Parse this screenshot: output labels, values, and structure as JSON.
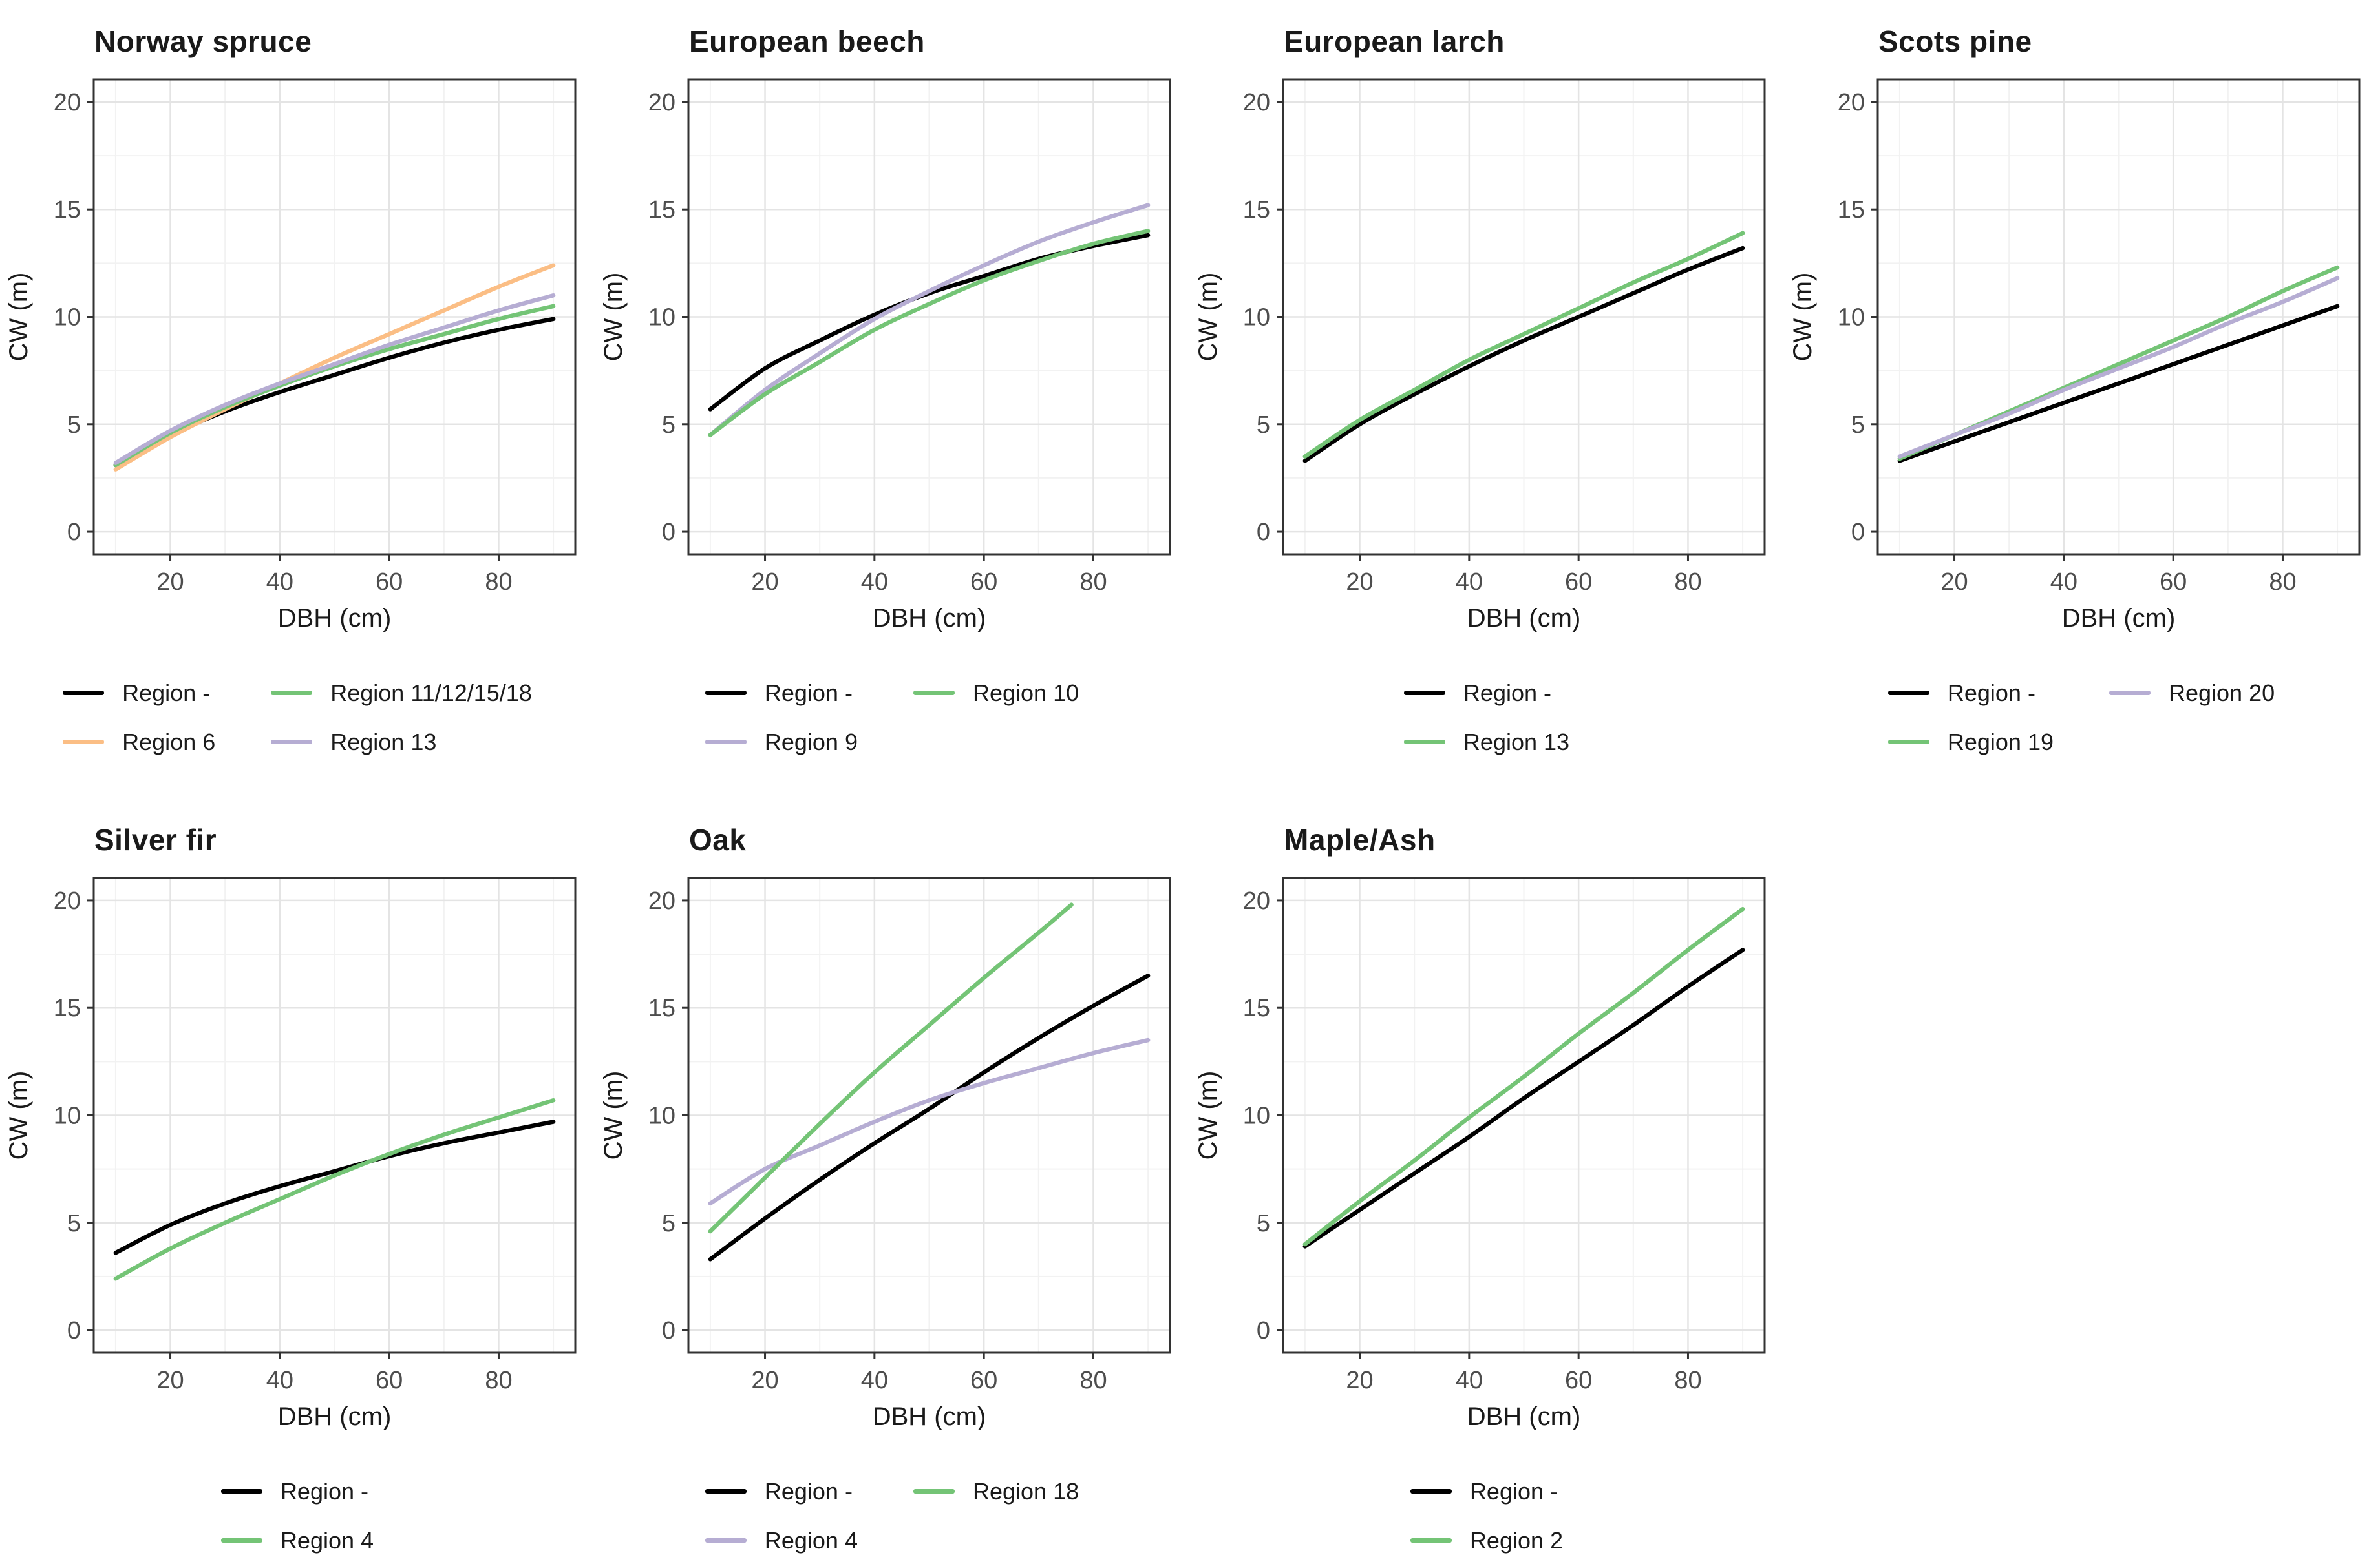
{
  "figure": {
    "x_axis_label": "DBH (cm)",
    "y_axis_label": "CW (m)"
  },
  "style": {
    "panel_border_color": "#333333",
    "major_grid_color": "#E4E4E4",
    "minor_grid_color": "#F2F2F2",
    "tick_color": "#333333",
    "tick_label_color": "#4D4D4D",
    "axis_title_color": "#1a1a1a",
    "series_palette": {
      "black": "#000000",
      "orange": "#FBBE85",
      "green": "#74C476",
      "purple": "#B6ADD3"
    }
  },
  "chart_data": [
    {
      "type": "line",
      "title": "Norway spruce",
      "xlabel": "DBH (cm)",
      "ylabel": "CW (m)",
      "xlim": [
        6,
        94
      ],
      "ylim": [
        -1.05,
        21.05
      ],
      "x_ticks": [
        20,
        40,
        60,
        80
      ],
      "y_ticks": [
        0,
        5,
        10,
        15,
        20
      ],
      "x_minor_gridlines": [
        10,
        30,
        50,
        70,
        90
      ],
      "y_minor_gridlines": [
        2.5,
        7.5,
        12.5,
        17.5
      ],
      "grid": true,
      "legend_position": "bottom",
      "series": [
        {
          "name": "Region -",
          "color": "#000000",
          "x": [
            10,
            20,
            30,
            40,
            50,
            60,
            70,
            80,
            90
          ],
          "y": [
            3.1,
            4.5,
            5.6,
            6.5,
            7.3,
            8.1,
            8.8,
            9.4,
            9.9
          ]
        },
        {
          "name": "Region 6",
          "color": "#FBBE85",
          "x": [
            10,
            20,
            30,
            40,
            50,
            60,
            70,
            80,
            90
          ],
          "y": [
            2.9,
            4.4,
            5.7,
            6.9,
            8.1,
            9.2,
            10.3,
            11.4,
            12.4
          ]
        },
        {
          "name": "Region 11/12/15/18",
          "color": "#74C476",
          "x": [
            10,
            20,
            30,
            40,
            50,
            60,
            70,
            80,
            90
          ],
          "y": [
            3.1,
            4.6,
            5.8,
            6.8,
            7.7,
            8.5,
            9.2,
            9.9,
            10.5
          ]
        },
        {
          "name": "Region 13",
          "color": "#B6ADD3",
          "x": [
            10,
            20,
            30,
            40,
            50,
            60,
            70,
            80,
            90
          ],
          "y": [
            3.2,
            4.7,
            5.9,
            6.9,
            7.8,
            8.7,
            9.5,
            10.3,
            11.0
          ]
        }
      ]
    },
    {
      "type": "line",
      "title": "European beech",
      "xlabel": "DBH (cm)",
      "ylabel": "CW (m)",
      "xlim": [
        6,
        94
      ],
      "ylim": [
        -1.05,
        21.05
      ],
      "x_ticks": [
        20,
        40,
        60,
        80
      ],
      "y_ticks": [
        0,
        5,
        10,
        15,
        20
      ],
      "x_minor_gridlines": [
        10,
        30,
        50,
        70,
        90
      ],
      "y_minor_gridlines": [
        2.5,
        7.5,
        12.5,
        17.5
      ],
      "grid": true,
      "legend_position": "bottom",
      "series": [
        {
          "name": "Region -",
          "color": "#000000",
          "x": [
            10,
            20,
            30,
            40,
            50,
            60,
            70,
            80,
            90
          ],
          "y": [
            5.7,
            7.6,
            8.9,
            10.1,
            11.1,
            11.9,
            12.7,
            13.3,
            13.8
          ]
        },
        {
          "name": "Region 9",
          "color": "#B6ADD3",
          "x": [
            10,
            20,
            30,
            40,
            50,
            60,
            70,
            80,
            90
          ],
          "y": [
            4.5,
            6.6,
            8.3,
            9.9,
            11.2,
            12.4,
            13.5,
            14.4,
            15.2
          ]
        },
        {
          "name": "Region 10",
          "color": "#74C476",
          "x": [
            10,
            20,
            30,
            40,
            50,
            60,
            70,
            80,
            90
          ],
          "y": [
            4.5,
            6.4,
            7.9,
            9.4,
            10.6,
            11.7,
            12.6,
            13.4,
            14.0
          ]
        }
      ]
    },
    {
      "type": "line",
      "title": "European larch",
      "xlabel": "DBH (cm)",
      "ylabel": "CW (m)",
      "xlim": [
        6,
        94
      ],
      "ylim": [
        -1.05,
        21.05
      ],
      "x_ticks": [
        20,
        40,
        60,
        80
      ],
      "y_ticks": [
        0,
        5,
        10,
        15,
        20
      ],
      "x_minor_gridlines": [
        10,
        30,
        50,
        70,
        90
      ],
      "y_minor_gridlines": [
        2.5,
        7.5,
        12.5,
        17.5
      ],
      "grid": true,
      "legend_position": "bottom",
      "series": [
        {
          "name": "Region -",
          "color": "#000000",
          "x": [
            10,
            20,
            30,
            40,
            50,
            60,
            70,
            80,
            90
          ],
          "y": [
            3.3,
            5.0,
            6.4,
            7.7,
            8.9,
            10.0,
            11.1,
            12.2,
            13.2
          ]
        },
        {
          "name": "Region 13",
          "color": "#74C476",
          "x": [
            10,
            20,
            30,
            40,
            50,
            60,
            70,
            80,
            90
          ],
          "y": [
            3.5,
            5.2,
            6.6,
            8.0,
            9.2,
            10.4,
            11.6,
            12.7,
            13.9
          ]
        }
      ]
    },
    {
      "type": "line",
      "title": "Scots pine",
      "xlabel": "DBH (cm)",
      "ylabel": "CW (m)",
      "xlim": [
        6,
        94
      ],
      "ylim": [
        -1.05,
        21.05
      ],
      "x_ticks": [
        20,
        40,
        60,
        80
      ],
      "y_ticks": [
        0,
        5,
        10,
        15,
        20
      ],
      "x_minor_gridlines": [
        10,
        30,
        50,
        70,
        90
      ],
      "y_minor_gridlines": [
        2.5,
        7.5,
        12.5,
        17.5
      ],
      "grid": true,
      "legend_position": "bottom",
      "series": [
        {
          "name": "Region -",
          "color": "#000000",
          "x": [
            10,
            20,
            30,
            40,
            50,
            60,
            70,
            80,
            90
          ],
          "y": [
            3.3,
            4.2,
            5.1,
            6.0,
            6.9,
            7.8,
            8.7,
            9.6,
            10.5
          ]
        },
        {
          "name": "Region 19",
          "color": "#74C476",
          "x": [
            10,
            20,
            30,
            40,
            50,
            60,
            70,
            80,
            90
          ],
          "y": [
            3.4,
            4.5,
            5.6,
            6.7,
            7.8,
            8.9,
            10.0,
            11.2,
            12.3
          ]
        },
        {
          "name": "Region 20",
          "color": "#B6ADD3",
          "x": [
            10,
            20,
            30,
            40,
            50,
            60,
            70,
            80,
            90
          ],
          "y": [
            3.5,
            4.5,
            5.5,
            6.6,
            7.6,
            8.6,
            9.7,
            10.7,
            11.8
          ]
        }
      ]
    },
    {
      "type": "line",
      "title": "Silver fir",
      "xlabel": "DBH (cm)",
      "ylabel": "CW (m)",
      "xlim": [
        6,
        94
      ],
      "ylim": [
        -1.05,
        21.05
      ],
      "x_ticks": [
        20,
        40,
        60,
        80
      ],
      "y_ticks": [
        0,
        5,
        10,
        15,
        20
      ],
      "x_minor_gridlines": [
        10,
        30,
        50,
        70,
        90
      ],
      "y_minor_gridlines": [
        2.5,
        7.5,
        12.5,
        17.5
      ],
      "grid": true,
      "legend_position": "bottom",
      "series": [
        {
          "name": "Region -",
          "color": "#000000",
          "x": [
            10,
            20,
            30,
            40,
            50,
            60,
            70,
            80,
            90
          ],
          "y": [
            3.6,
            4.9,
            5.9,
            6.7,
            7.4,
            8.1,
            8.7,
            9.2,
            9.7
          ]
        },
        {
          "name": "Region 4",
          "color": "#74C476",
          "x": [
            10,
            20,
            30,
            40,
            50,
            60,
            70,
            80,
            90
          ],
          "y": [
            2.4,
            3.8,
            5.0,
            6.1,
            7.2,
            8.2,
            9.1,
            9.9,
            10.7
          ]
        }
      ]
    },
    {
      "type": "line",
      "title": "Oak",
      "xlabel": "DBH (cm)",
      "ylabel": "CW (m)",
      "xlim": [
        6,
        94
      ],
      "ylim": [
        -1.05,
        21.05
      ],
      "x_ticks": [
        20,
        40,
        60,
        80
      ],
      "y_ticks": [
        0,
        5,
        10,
        15,
        20
      ],
      "x_minor_gridlines": [
        10,
        30,
        50,
        70,
        90
      ],
      "y_minor_gridlines": [
        2.5,
        7.5,
        12.5,
        17.5
      ],
      "grid": true,
      "legend_position": "bottom",
      "series": [
        {
          "name": "Region -",
          "color": "#000000",
          "x": [
            10,
            20,
            30,
            40,
            50,
            60,
            70,
            80,
            90
          ],
          "y": [
            3.3,
            5.2,
            7.0,
            8.7,
            10.3,
            12.0,
            13.6,
            15.1,
            16.5
          ]
        },
        {
          "name": "Region 4",
          "color": "#B6ADD3",
          "x": [
            10,
            20,
            30,
            40,
            50,
            60,
            70,
            80,
            90
          ],
          "y": [
            5.9,
            7.5,
            8.6,
            9.7,
            10.7,
            11.5,
            12.2,
            12.9,
            13.5
          ]
        },
        {
          "name": "Region 18",
          "color": "#74C476",
          "x": [
            10,
            20,
            30,
            40,
            50,
            60,
            70,
            76
          ],
          "y": [
            4.6,
            7.1,
            9.6,
            12.0,
            14.2,
            16.4,
            18.5,
            19.8
          ]
        }
      ]
    },
    {
      "type": "line",
      "title": "Maple/Ash",
      "xlabel": "DBH (cm)",
      "ylabel": "CW (m)",
      "xlim": [
        6,
        94
      ],
      "ylim": [
        -1.05,
        21.05
      ],
      "x_ticks": [
        20,
        40,
        60,
        80
      ],
      "y_ticks": [
        0,
        5,
        10,
        15,
        20
      ],
      "x_minor_gridlines": [
        10,
        30,
        50,
        70,
        90
      ],
      "y_minor_gridlines": [
        2.5,
        7.5,
        12.5,
        17.5
      ],
      "grid": true,
      "legend_position": "bottom",
      "series": [
        {
          "name": "Region -",
          "color": "#000000",
          "x": [
            10,
            20,
            30,
            40,
            50,
            60,
            70,
            80,
            90
          ],
          "y": [
            3.9,
            5.6,
            7.3,
            9.0,
            10.8,
            12.5,
            14.2,
            16.0,
            17.7
          ]
        },
        {
          "name": "Region 2",
          "color": "#74C476",
          "x": [
            10,
            20,
            30,
            40,
            50,
            60,
            70,
            80,
            90
          ],
          "y": [
            4.0,
            6.0,
            7.9,
            9.9,
            11.8,
            13.8,
            15.7,
            17.7,
            19.6
          ]
        }
      ]
    }
  ]
}
